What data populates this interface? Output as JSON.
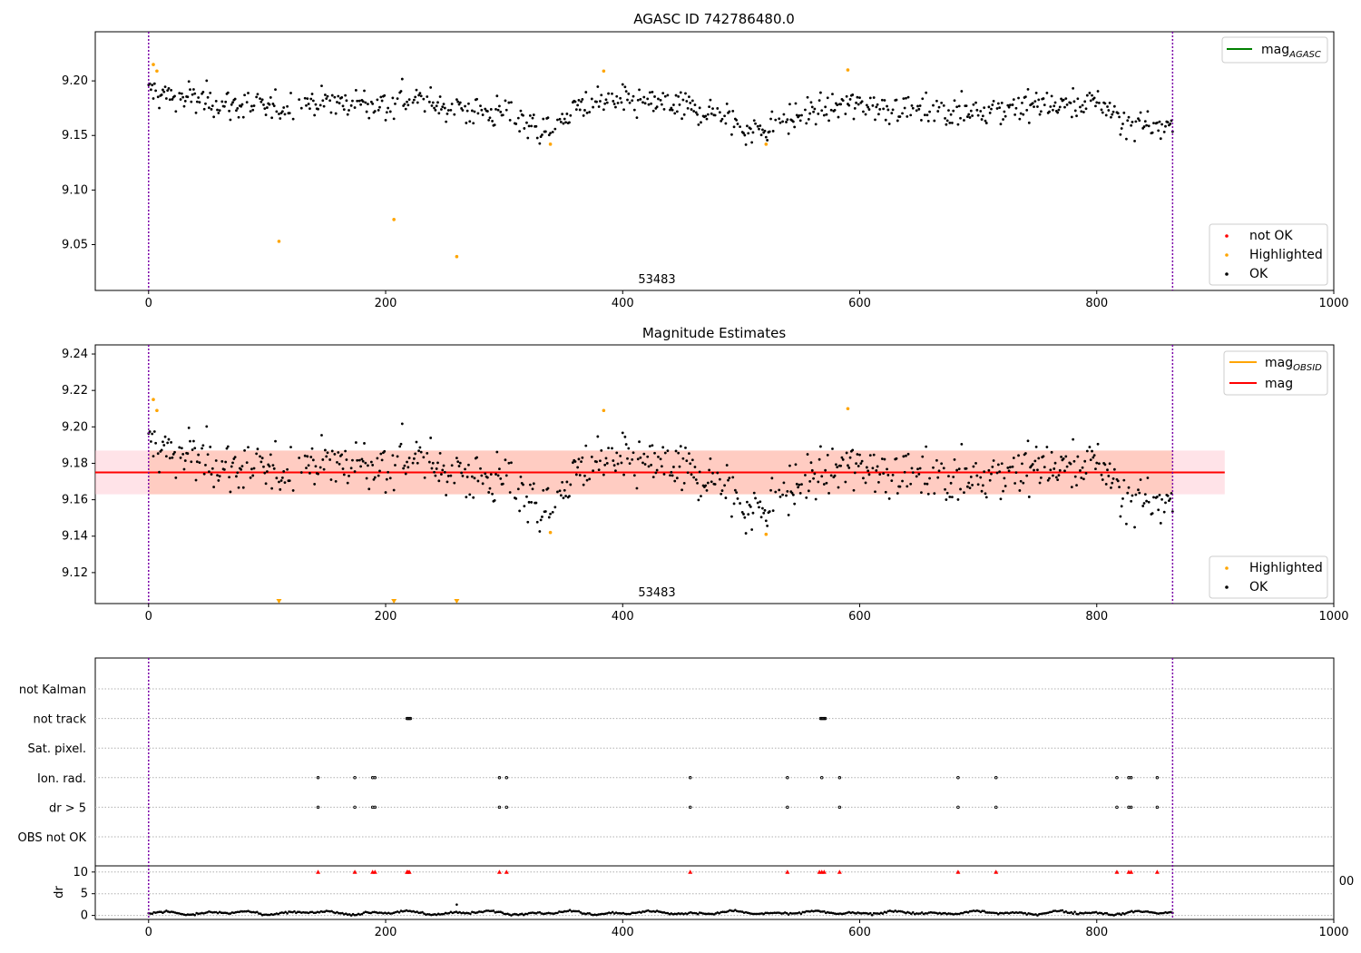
{
  "chart_data": [
    {
      "type": "scatter",
      "title": "AGASC ID 742786480.0",
      "xlim": [
        -45,
        1000
      ],
      "ylim": [
        9.008,
        9.245
      ],
      "xticks": [
        0,
        200,
        400,
        600,
        800,
        1000
      ],
      "yticks": [
        9.05,
        9.1,
        9.15,
        9.2
      ],
      "annotation": "53483",
      "annotation_x": 430,
      "vlines": [
        0,
        864
      ],
      "legend_lines": [
        {
          "name": "mag_AGASC",
          "color": "#008000"
        }
      ],
      "legend_points": [
        {
          "name": "not OK",
          "color": "#ff0000"
        },
        {
          "name": "Highlighted",
          "color": "#ffa500"
        },
        {
          "name": "OK",
          "color": "#000000"
        }
      ],
      "highlighted": [
        [
          4,
          9.215
        ],
        [
          7,
          9.209
        ],
        [
          110,
          9.053
        ],
        [
          207,
          9.073
        ],
        [
          260,
          9.039
        ],
        [
          339,
          9.142
        ],
        [
          384,
          9.209
        ],
        [
          521,
          9.142
        ],
        [
          590,
          9.21
        ]
      ]
    },
    {
      "type": "scatter",
      "title": "Magnitude Estimates",
      "xlim": [
        -45,
        1000
      ],
      "ylim": [
        9.103,
        9.245
      ],
      "xticks": [
        0,
        200,
        400,
        600,
        800,
        1000
      ],
      "yticks": [
        9.12,
        9.14,
        9.16,
        9.18,
        9.2,
        9.22,
        9.24
      ],
      "annotation": "53483",
      "annotation_x": 430,
      "vlines": [
        0,
        864
      ],
      "mag": 9.175,
      "mag_band": [
        9.163,
        9.187
      ],
      "band_x": [
        -45,
        908
      ],
      "legend_lines": [
        {
          "name": "mag_OBSID",
          "color": "#ffa500"
        },
        {
          "name": "mag",
          "color": "#ff0000"
        }
      ],
      "legend_points": [
        {
          "name": "Highlighted",
          "color": "#ffa500"
        },
        {
          "name": "OK",
          "color": "#000000"
        }
      ],
      "highlighted": [
        [
          4,
          9.215
        ],
        [
          7,
          9.209
        ],
        [
          339,
          9.142
        ],
        [
          384,
          9.209
        ],
        [
          521,
          9.141
        ],
        [
          590,
          9.21
        ]
      ],
      "off_scale_markers": [
        110,
        207,
        260
      ]
    },
    {
      "type": "scatter",
      "xlim": [
        -45,
        1000
      ],
      "flag_categories": [
        "not Kalman",
        "not track",
        "Sat. pixel.",
        "Ion. rad.",
        "dr > 5",
        "OBS not OK"
      ],
      "flag_points": {
        "not track": [
          218,
          219,
          220,
          221,
          567,
          568,
          569,
          570,
          571
        ],
        "Ion. rad.": [
          143,
          174,
          189,
          191,
          296,
          302,
          457,
          539,
          568,
          583,
          683,
          715,
          817,
          827,
          829,
          851
        ],
        "dr > 5": [
          143,
          174,
          189,
          191,
          296,
          302,
          457,
          539,
          583,
          683,
          715,
          817,
          827,
          829,
          851
        ]
      },
      "dr_ylabel": "dr",
      "dr_ylim": [
        -0.5,
        11
      ],
      "dr_yticks": [
        0,
        5,
        10
      ],
      "dr_threshold_markers": [
        143,
        174,
        189,
        191,
        218,
        219,
        220,
        296,
        302,
        457,
        539,
        566,
        568,
        570,
        583,
        683,
        715,
        817,
        827,
        829,
        851
      ],
      "stray_label": "00",
      "xticks": [
        0,
        200,
        400,
        600,
        800,
        1000
      ],
      "vlines": [
        0,
        864
      ]
    }
  ]
}
